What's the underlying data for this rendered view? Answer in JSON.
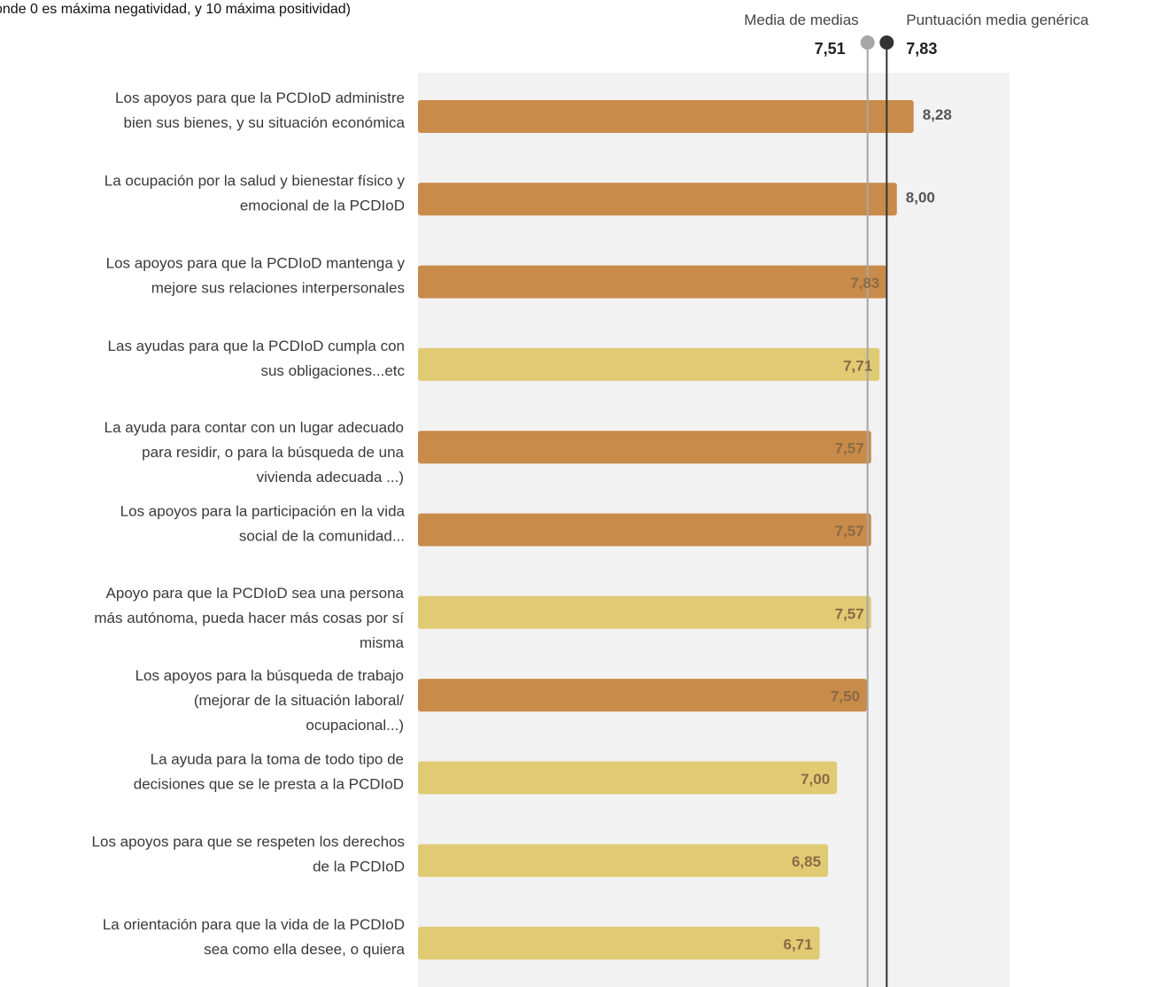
{
  "chart_data": {
    "type": "bar",
    "orientation": "horizontal",
    "subtitle": "onde 0 es máxima negatividad, y 10 máxima positividad)",
    "categories": [
      [
        "Los apoyos para que la PCDIoD administre",
        "bien sus bienes, y su situación  económica"
      ],
      [
        "La ocupación  por la salud y bienestar  físico y",
        "emocional  de la PCDIoD"
      ],
      [
        "Los apoyos para que la PCDIoD mantenga  y",
        "mejore sus relaciones  interpersonales"
      ],
      [
        "Las ayudas para que la PCDIoD cumpla con",
        "sus obligaciones...etc"
      ],
      [
        "La ayuda para contar  con un lugar adecuado",
        "para residir, o para la búsqueda de una",
        "vivienda adecuada  ...)"
      ],
      [
        "Los apoyos para la participación  en la vida",
        "social de la comunidad..."
      ],
      [
        "Apoyo para que la PCDIoD sea una persona",
        "más autónoma,  pueda hacer  más cosas por sí",
        "misma"
      ],
      [
        "Los apoyos para la búsqueda de trabajo",
        "(mejorar  de la situación  laboral/",
        "ocupacional...)"
      ],
      [
        "La ayuda para la toma de todo  tipo de",
        "decisiones  que se le presta a la PCDIoD"
      ],
      [
        "Los apoyos para que se respeten  los derechos",
        "de la PCDIoD"
      ],
      [
        "La orientación  para que la vida de la PCDIoD",
        "sea como ella desee, o quiera"
      ]
    ],
    "values": [
      8.28,
      8.0,
      7.83,
      7.71,
      7.57,
      7.57,
      7.57,
      7.5,
      7.0,
      6.85,
      6.71
    ],
    "value_labels": [
      "8,28",
      "8,00",
      "7,83",
      "7,71",
      "7,57",
      "7,57",
      "7,57",
      "7,50",
      "7,00",
      "6,85",
      "6,71"
    ],
    "bar_colors": [
      "#c98b49",
      "#c98b49",
      "#c98b49",
      "#e0cb74",
      "#c98b49",
      "#c98b49",
      "#e0cb74",
      "#c98b49",
      "#e0cb74",
      "#e0cb74",
      "#e0cb74"
    ],
    "xlim": [
      0,
      9
    ],
    "reference_lines": [
      {
        "name": "Media de medias",
        "value": 7.51,
        "label": "7,51",
        "color": "#a6a6a6"
      },
      {
        "name": "Puntuación media genérica",
        "value": 7.83,
        "label": "7,83",
        "color": "#333333"
      }
    ],
    "plot_background": "#f2f2f2",
    "grid": false
  }
}
